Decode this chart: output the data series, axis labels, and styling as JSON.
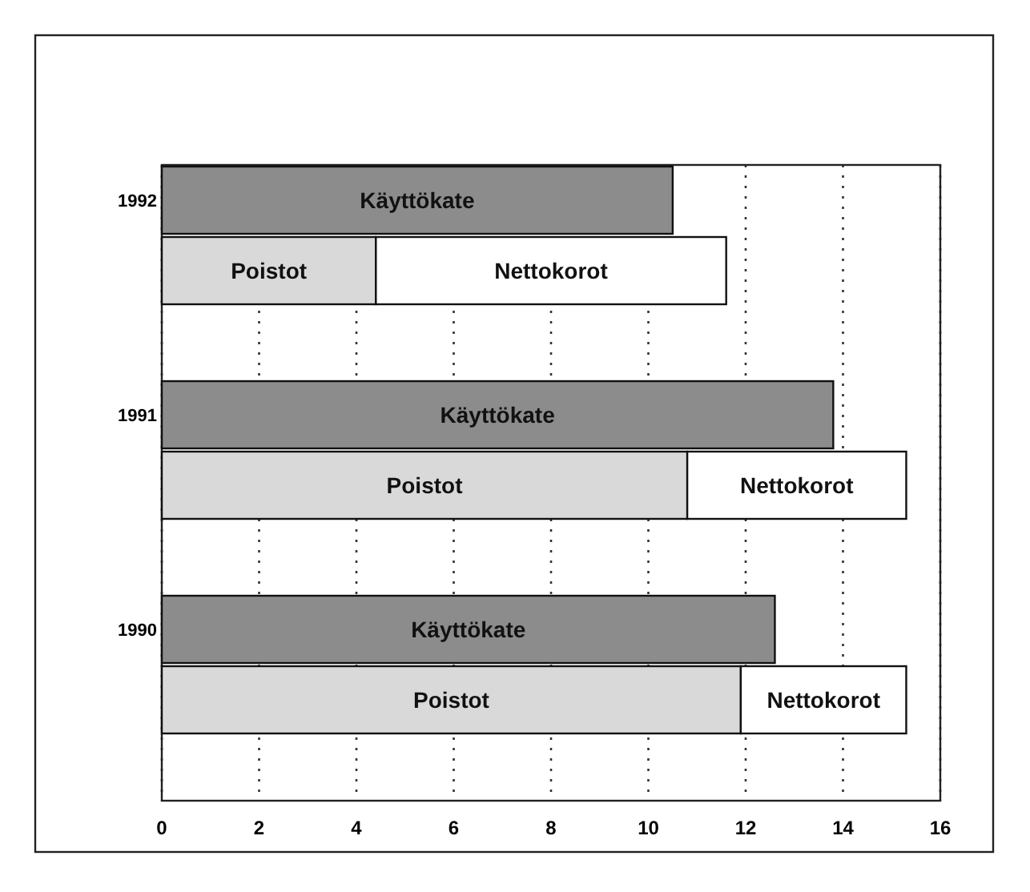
{
  "chart_data": {
    "type": "bar",
    "orientation": "horizontal",
    "stacked": true,
    "categories": [
      "1992",
      null,
      "1991",
      null,
      "1990",
      null
    ],
    "series": [
      {
        "name": "Käyttökate",
        "color": "#8c8c8c",
        "values": [
          10.5,
          null,
          13.8,
          null,
          12.6,
          null
        ]
      },
      {
        "name": "Poistot",
        "color": "#d9d9d9",
        "values": [
          null,
          4.4,
          null,
          10.8,
          null,
          11.9
        ]
      },
      {
        "name": "Nettokorot",
        "color": "#ffffff",
        "values": [
          null,
          7.2,
          null,
          4.5,
          null,
          3.4
        ]
      }
    ],
    "xlim": [
      0,
      16
    ],
    "xticks": [
      0,
      2,
      4,
      6,
      8,
      10,
      12,
      14,
      16
    ],
    "grid": "x",
    "legend": false
  }
}
